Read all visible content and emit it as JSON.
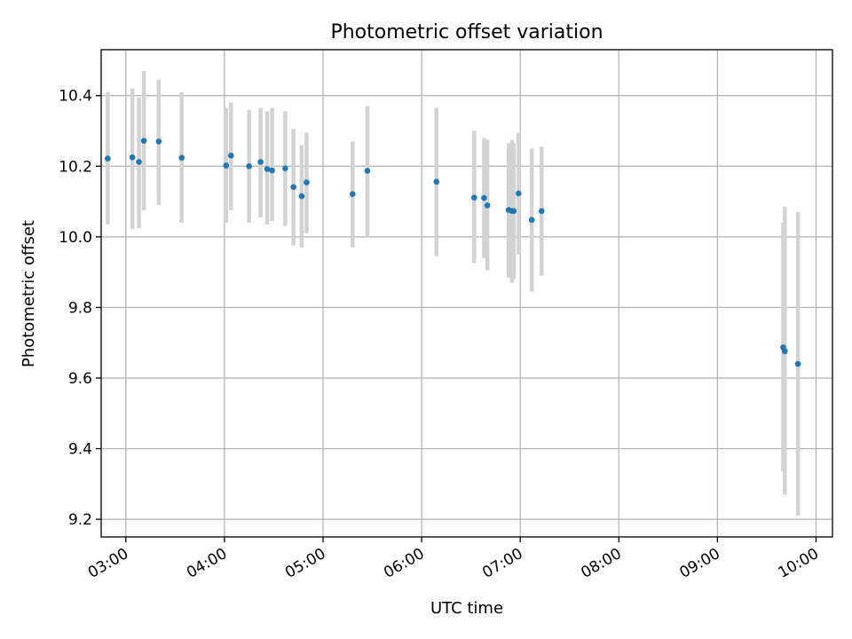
{
  "chart_data": {
    "type": "scatter",
    "title": "Photometric offset variation",
    "xlabel": "UTC time",
    "ylabel": "Photometric offset",
    "x_axis_kind": "time (UTC, hours:minutes)",
    "xlim": [
      "02:45",
      "10:10"
    ],
    "ylim": [
      9.15,
      10.53
    ],
    "xticks": [
      "03:00",
      "04:00",
      "05:00",
      "06:00",
      "07:00",
      "08:00",
      "09:00",
      "10:00"
    ],
    "yticks": [
      "9.2",
      "9.4",
      "9.6",
      "9.8",
      "10.0",
      "10.2",
      "10.4"
    ],
    "grid": true,
    "legend": "none",
    "colors": {
      "point": "#1f77b4",
      "error_bar": "#d3d3d3",
      "grid": "#b0b0b0"
    },
    "series": [
      {
        "points": [
          {
            "time": "02:49",
            "y": 10.222,
            "err_low": 10.035,
            "err_high": 10.41
          },
          {
            "time": "03:04",
            "y": 10.225,
            "err_low": 10.022,
            "err_high": 10.42
          },
          {
            "time": "03:08",
            "y": 10.212,
            "err_low": 10.025,
            "err_high": 10.395
          },
          {
            "time": "03:11",
            "y": 10.272,
            "err_low": 10.075,
            "err_high": 10.47
          },
          {
            "time": "03:20",
            "y": 10.27,
            "err_low": 10.09,
            "err_high": 10.445
          },
          {
            "time": "03:34",
            "y": 10.224,
            "err_low": 10.04,
            "err_high": 10.41
          },
          {
            "time": "04:01",
            "y": 10.202,
            "err_low": 10.04,
            "err_high": 10.365
          },
          {
            "time": "04:04",
            "y": 10.23,
            "err_low": 10.075,
            "err_high": 10.38
          },
          {
            "time": "04:15",
            "y": 10.2,
            "err_low": 10.04,
            "err_high": 10.36
          },
          {
            "time": "04:22",
            "y": 10.212,
            "err_low": 10.055,
            "err_high": 10.365
          },
          {
            "time": "04:26",
            "y": 10.192,
            "err_low": 10.035,
            "err_high": 10.355
          },
          {
            "time": "04:29",
            "y": 10.188,
            "err_low": 10.045,
            "err_high": 10.365
          },
          {
            "time": "04:37",
            "y": 10.194,
            "err_low": 10.03,
            "err_high": 10.355
          },
          {
            "time": "04:42",
            "y": 10.141,
            "err_low": 9.975,
            "err_high": 10.305
          },
          {
            "time": "04:47",
            "y": 10.115,
            "err_low": 9.97,
            "err_high": 10.26
          },
          {
            "time": "04:50",
            "y": 10.154,
            "err_low": 10.01,
            "err_high": 10.295
          },
          {
            "time": "05:18",
            "y": 10.121,
            "err_low": 9.97,
            "err_high": 10.27
          },
          {
            "time": "05:27",
            "y": 10.187,
            "err_low": 10.0,
            "err_high": 10.37
          },
          {
            "time": "06:09",
            "y": 10.156,
            "err_low": 9.945,
            "err_high": 10.365
          },
          {
            "time": "06:32",
            "y": 10.111,
            "err_low": 9.925,
            "err_high": 10.3
          },
          {
            "time": "06:38",
            "y": 10.11,
            "err_low": 9.94,
            "err_high": 10.28
          },
          {
            "time": "06:40",
            "y": 10.089,
            "err_low": 9.905,
            "err_high": 10.275
          },
          {
            "time": "06:53",
            "y": 10.076,
            "err_low": 9.885,
            "err_high": 10.265
          },
          {
            "time": "06:55",
            "y": 10.073,
            "err_low": 9.87,
            "err_high": 10.275
          },
          {
            "time": "06:56",
            "y": 10.073,
            "err_low": 9.88,
            "err_high": 10.265
          },
          {
            "time": "06:59",
            "y": 10.123,
            "err_low": 9.95,
            "err_high": 10.295
          },
          {
            "time": "07:07",
            "y": 10.048,
            "err_low": 9.845,
            "err_high": 10.25
          },
          {
            "time": "07:13",
            "y": 10.073,
            "err_low": 9.89,
            "err_high": 10.255
          },
          {
            "time": "09:40",
            "y": 9.687,
            "err_low": 9.335,
            "err_high": 10.04
          },
          {
            "time": "09:41",
            "y": 9.676,
            "err_low": 9.27,
            "err_high": 10.085
          },
          {
            "time": "09:49",
            "y": 9.64,
            "err_low": 9.21,
            "err_high": 10.07
          }
        ]
      }
    ]
  }
}
